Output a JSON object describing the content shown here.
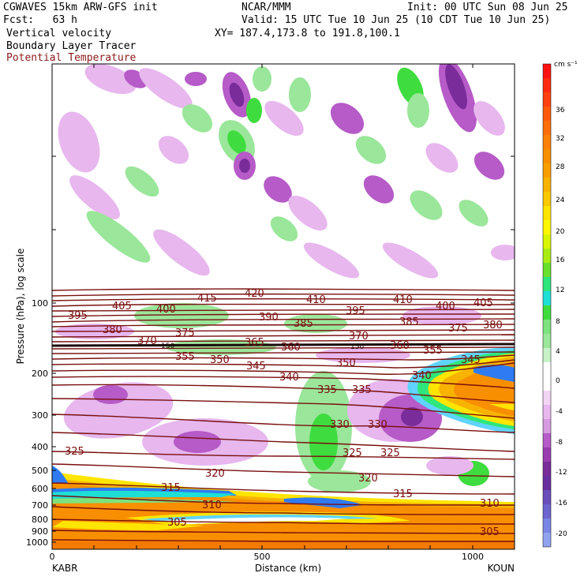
{
  "header": {
    "model": "CGWAVES 15km ARW-GFS init",
    "center": "NCAR/MMM",
    "init": "Init: 00 UTC Sun 08 Jun 25",
    "fcst": "Fcst:   63 h",
    "valid": "Valid: 15 UTC Tue 10 Jun 25 (10 CDT Tue 10 Jun 25)",
    "xy": "XY= 187.4,173.8 to 191.8,100.1",
    "field1": "Vertical velocity",
    "field2": "Boundary Layer Tracer",
    "field3": "Potential Temperature"
  },
  "colors": {
    "theta": "#7a0f0f",
    "field3_text": "#8b1a1a"
  },
  "chart_data": {
    "type": "heatmap",
    "title": "",
    "xlabel": "Distance (km)",
    "ylabel": "Pressure (hPa), log scale",
    "xlim": [
      0,
      1100
    ],
    "x_ticks": [
      "0",
      "500",
      "1000"
    ],
    "x_endpoints": [
      "KABR",
      "KOUN"
    ],
    "y_scale": "log",
    "y_ticks": [
      "100",
      "200",
      "300",
      "400",
      "500",
      "600",
      "700",
      "800",
      "900",
      "1000"
    ],
    "colorbar": {
      "units": "cm s⁻¹",
      "labels": [
        "36",
        "32",
        "28",
        "24",
        "20",
        "16",
        "12",
        "8",
        "4",
        "0",
        "-4",
        "-8",
        "-12",
        "-16",
        "-20"
      ]
    },
    "theta_labels": [
      "395",
      "405",
      "400",
      "415",
      "420",
      "410",
      "395",
      "410",
      "400",
      "405",
      "380",
      "375",
      "390",
      "385",
      "385",
      "375",
      "380",
      "370",
      "365",
      "370",
      "360",
      "360",
      "355",
      "350",
      "345",
      "350",
      "355",
      "345",
      "340",
      "340",
      "335",
      "335",
      "330",
      "330",
      "325",
      "325",
      "325",
      "320",
      "320",
      "315",
      "315",
      "310",
      "310",
      "305",
      "305",
      "150",
      "150"
    ]
  }
}
